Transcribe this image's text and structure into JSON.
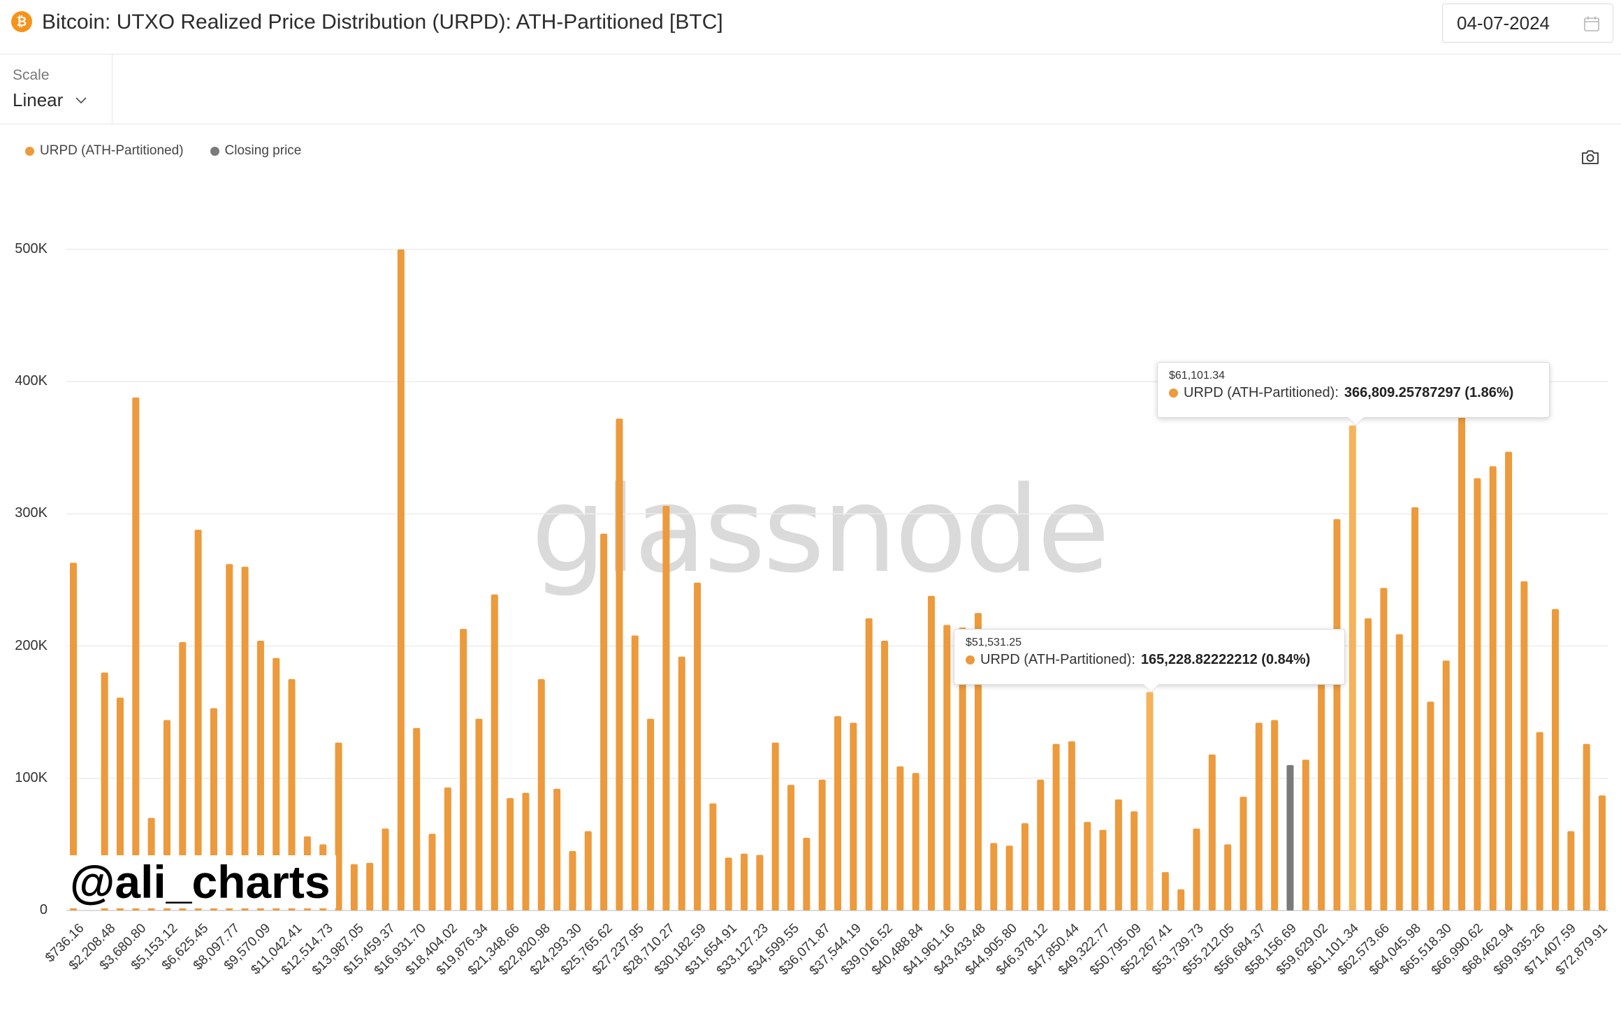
{
  "header": {
    "title": "Bitcoin: UTXO Realized Price Distribution (URPD): ATH-Partitioned [BTC]",
    "date": "04-07-2024",
    "asset_icon": "bitcoin-icon",
    "date_icon": "calendar-icon"
  },
  "scale": {
    "label": "Scale",
    "value": "Linear"
  },
  "legend": {
    "series1": "URPD (ATH-Partitioned)",
    "series2": "Closing price",
    "series1_color": "#ec9a3c",
    "series2_color": "#7a7a7a"
  },
  "watermark": "glassnode",
  "handle": "@ali_charts",
  "tooltip1": {
    "price": "$61,101.34",
    "series": "URPD (ATH-Partitioned):",
    "value": "366,809.25787297 (1.86%)"
  },
  "tooltip2": {
    "price": "$51,531.25",
    "series": "URPD (ATH-Partitioned):",
    "value": "165,228.82222212 (0.84%)"
  },
  "chart_data": {
    "type": "bar",
    "title": "Bitcoin: UTXO Realized Price Distribution (URPD): ATH-Partitioned [BTC]",
    "xlabel": "",
    "ylabel": "",
    "ylim": [
      0,
      500000
    ],
    "y_ticks": [
      "0",
      "100K",
      "200K",
      "300K",
      "400K",
      "500K"
    ],
    "x_tick_labels": [
      "$736.16",
      "$2,208.48",
      "$3,680.80",
      "$5,153.12",
      "$6,625.45",
      "$8,097.77",
      "$9,570.09",
      "$11,042.41",
      "$12,514.73",
      "$13,987.05",
      "$15,459.37",
      "$16,931.70",
      "$18,404.02",
      "$19,876.34",
      "$21,348.66",
      "$22,820.98",
      "$24,293.30",
      "$25,765.62",
      "$27,237.95",
      "$28,710.27",
      "$30,182.59",
      "$31,654.91",
      "$33,127.23",
      "$34,599.55",
      "$36,071.87",
      "$37,544.19",
      "$39,016.52",
      "$40,488.84",
      "$41,961.16",
      "$43,433.48",
      "$44,905.80",
      "$46,378.12",
      "$47,850.44",
      "$49,322.77",
      "$50,795.09",
      "$52,267.41",
      "$53,739.73",
      "$55,212.05",
      "$56,684.37",
      "$58,156.69",
      "$59,629.02",
      "$61,101.34",
      "$62,573.66",
      "$64,045.98",
      "$65,518.30",
      "$66,990.62",
      "$68,462.94",
      "$69,935.26",
      "$71,407.59",
      "$72,879.91"
    ],
    "bucket_width": 736.16,
    "series": [
      {
        "name": "URPD (ATH-Partitioned)",
        "color": "#ec9a3c",
        "values": [
          263000,
          0,
          180000,
          161000,
          388000,
          70000,
          144000,
          203000,
          288000,
          153000,
          262000,
          260000,
          204000,
          191000,
          175000,
          56000,
          50000,
          127000,
          35000,
          36000,
          62000,
          500000,
          138000,
          58000,
          93000,
          213000,
          145000,
          239000,
          85000,
          89000,
          175000,
          92000,
          45000,
          60000,
          285000,
          372000,
          208000,
          145000,
          306000,
          192000,
          248000,
          81000,
          40000,
          43000,
          42000,
          127000,
          95000,
          55000,
          99000,
          147000,
          142000,
          221000,
          204000,
          109000,
          104000,
          238000,
          216000,
          214000,
          225000,
          51000,
          49000,
          66000,
          99000,
          126000,
          128000,
          67000,
          61000,
          84000,
          75000,
          165229,
          29000,
          16000,
          62000,
          118000,
          50000,
          86000,
          142000,
          144000,
          0,
          114000,
          212000,
          296000,
          366809,
          221000,
          244000,
          209000,
          305000,
          158000,
          189000,
          378000,
          327000,
          336000,
          347000,
          249000,
          135000,
          228000,
          60000,
          126000,
          87000
        ]
      },
      {
        "name": "Closing price",
        "color": "#7a7a7a",
        "values": [
          0,
          0,
          0,
          0,
          0,
          0,
          0,
          0,
          0,
          0,
          0,
          0,
          0,
          0,
          0,
          0,
          0,
          0,
          0,
          0,
          0,
          0,
          0,
          0,
          0,
          0,
          0,
          0,
          0,
          0,
          0,
          0,
          0,
          0,
          0,
          0,
          0,
          0,
          0,
          0,
          0,
          0,
          0,
          0,
          0,
          0,
          0,
          0,
          0,
          0,
          0,
          0,
          0,
          0,
          0,
          0,
          0,
          0,
          0,
          0,
          0,
          0,
          0,
          0,
          0,
          0,
          0,
          0,
          0,
          0,
          0,
          0,
          0,
          0,
          0,
          0,
          0,
          0,
          110000,
          0,
          0,
          0,
          0,
          0,
          0,
          0,
          0,
          0,
          0,
          0,
          0,
          0,
          0,
          0,
          0,
          0,
          0,
          0,
          0
        ]
      }
    ],
    "highlighted_bars": [
      "$51,531.25",
      "$61,101.34"
    ],
    "legend_position": "top-left",
    "grid": true
  }
}
